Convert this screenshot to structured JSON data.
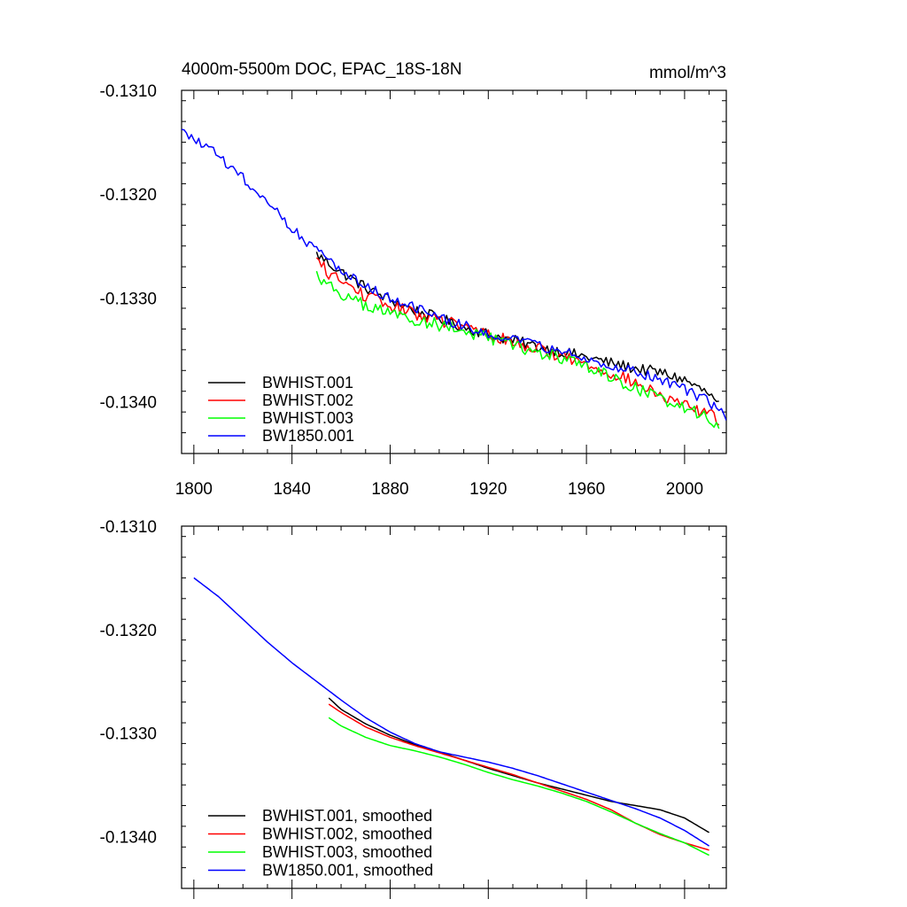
{
  "chart_data": [
    {
      "type": "line",
      "title": "4000m-5500m DOC, EPAC_18S-18N",
      "units": "mmol/m^3",
      "xlim": [
        1795,
        2017
      ],
      "ylim": [
        -0.1345,
        -0.131
      ],
      "xticks": [
        1800,
        1840,
        1880,
        1920,
        1960,
        2000
      ],
      "xtick_labels": [
        "1800",
        "1840",
        "1880",
        "1920",
        "1960",
        "2000"
      ],
      "yticks": [
        -0.131,
        -0.132,
        -0.133,
        -0.134
      ],
      "ytick_labels": [
        "-0.1310",
        "-0.1320",
        "-0.1330",
        "-0.1340"
      ],
      "series": [
        {
          "name": "BWHIST.001",
          "color": "#000000",
          "noise": 5.5e-05,
          "x": [
            1850,
            1860,
            1870,
            1880,
            1890,
            1900,
            1910,
            1920,
            1930,
            1940,
            1950,
            1960,
            1970,
            1980,
            1990,
            2000,
            2005,
            2010,
            2014
          ],
          "y": [
            -0.13258,
            -0.13275,
            -0.1329,
            -0.13302,
            -0.13312,
            -0.1332,
            -0.13328,
            -0.13335,
            -0.13341,
            -0.13347,
            -0.13352,
            -0.13357,
            -0.13363,
            -0.13368,
            -0.13372,
            -0.13379,
            -0.13386,
            -0.13393,
            -0.13404
          ]
        },
        {
          "name": "BWHIST.002",
          "color": "#ff0000",
          "noise": 6e-05,
          "x": [
            1850,
            1855,
            1860,
            1870,
            1880,
            1890,
            1900,
            1910,
            1920,
            1930,
            1940,
            1950,
            1960,
            1970,
            1980,
            1990,
            2000,
            2010,
            2014
          ],
          "y": [
            -0.13264,
            -0.13276,
            -0.13284,
            -0.13298,
            -0.13308,
            -0.13315,
            -0.13321,
            -0.13328,
            -0.13335,
            -0.13343,
            -0.13349,
            -0.13356,
            -0.13364,
            -0.13372,
            -0.13382,
            -0.13395,
            -0.13404,
            -0.13412,
            -0.13418
          ]
        },
        {
          "name": "BWHIST.003",
          "color": "#00ff00",
          "noise": 6e-05,
          "x": [
            1850,
            1855,
            1860,
            1870,
            1880,
            1890,
            1900,
            1910,
            1920,
            1930,
            1940,
            1950,
            1960,
            1970,
            1980,
            1990,
            2000,
            2010,
            2014
          ],
          "y": [
            -0.13277,
            -0.13288,
            -0.13296,
            -0.13308,
            -0.13315,
            -0.13321,
            -0.13326,
            -0.13332,
            -0.13339,
            -0.13346,
            -0.13353,
            -0.13358,
            -0.13366,
            -0.13376,
            -0.13387,
            -0.13397,
            -0.13405,
            -0.13416,
            -0.13424
          ]
        },
        {
          "name": "BW1850.001",
          "color": "#0000ff",
          "noise": 5e-05,
          "x": [
            1795,
            1800,
            1810,
            1820,
            1830,
            1840,
            1850,
            1860,
            1870,
            1880,
            1890,
            1900,
            1910,
            1920,
            1930,
            1940,
            1950,
            1960,
            1970,
            1980,
            1990,
            2000,
            2010,
            2017
          ],
          "y": [
            -0.1314,
            -0.13147,
            -0.13163,
            -0.13185,
            -0.13207,
            -0.13232,
            -0.13255,
            -0.13272,
            -0.13288,
            -0.133,
            -0.1331,
            -0.13319,
            -0.13327,
            -0.13334,
            -0.13341,
            -0.13346,
            -0.13352,
            -0.13358,
            -0.13365,
            -0.13372,
            -0.13378,
            -0.13388,
            -0.134,
            -0.13415
          ]
        }
      ]
    },
    {
      "type": "line",
      "title": "",
      "units": "",
      "xlim": [
        1795,
        2017
      ],
      "ylim": [
        -0.1345,
        -0.131
      ],
      "xticks": [
        1800,
        1840,
        1880,
        1920,
        1960,
        2000
      ],
      "xtick_labels": [
        "",
        "",
        "",
        "",
        "",
        ""
      ],
      "yticks": [
        -0.131,
        -0.132,
        -0.133,
        -0.134
      ],
      "ytick_labels": [
        "-0.1310",
        "-0.1320",
        "-0.1330",
        "-0.1340"
      ],
      "series": [
        {
          "name": "BWHIST.001, smoothed",
          "color": "#000000",
          "noise": 0,
          "x": [
            1855,
            1860,
            1870,
            1880,
            1890,
            1900,
            1910,
            1920,
            1930,
            1940,
            1950,
            1960,
            1970,
            1980,
            1990,
            2000,
            2010
          ],
          "y": [
            -0.13266,
            -0.13277,
            -0.13291,
            -0.13302,
            -0.13311,
            -0.13318,
            -0.13326,
            -0.13334,
            -0.13341,
            -0.13348,
            -0.13354,
            -0.1336,
            -0.13366,
            -0.1337,
            -0.13374,
            -0.13382,
            -0.13396
          ]
        },
        {
          "name": "BWHIST.002, smoothed",
          "color": "#ff0000",
          "noise": 0,
          "x": [
            1855,
            1860,
            1870,
            1880,
            1890,
            1900,
            1910,
            1920,
            1930,
            1940,
            1950,
            1960,
            1970,
            1980,
            1990,
            2000,
            2010
          ],
          "y": [
            -0.13272,
            -0.1328,
            -0.13294,
            -0.13304,
            -0.13312,
            -0.13319,
            -0.13326,
            -0.13333,
            -0.1334,
            -0.13348,
            -0.13356,
            -0.13364,
            -0.13374,
            -0.13387,
            -0.13398,
            -0.13406,
            -0.13413
          ]
        },
        {
          "name": "BWHIST.003, smoothed",
          "color": "#00ff00",
          "noise": 0,
          "x": [
            1855,
            1860,
            1870,
            1880,
            1890,
            1900,
            1910,
            1920,
            1930,
            1940,
            1950,
            1960,
            1970,
            1980,
            1990,
            2000,
            2010
          ],
          "y": [
            -0.13285,
            -0.13293,
            -0.13304,
            -0.13312,
            -0.13317,
            -0.13323,
            -0.1333,
            -0.13338,
            -0.13345,
            -0.13351,
            -0.13358,
            -0.13366,
            -0.13376,
            -0.13387,
            -0.13397,
            -0.13406,
            -0.13418
          ]
        },
        {
          "name": "BW1850.001, smoothed",
          "color": "#0000ff",
          "noise": 0,
          "x": [
            1800,
            1810,
            1820,
            1830,
            1840,
            1850,
            1860,
            1870,
            1880,
            1890,
            1900,
            1910,
            1920,
            1930,
            1940,
            1950,
            1960,
            1970,
            1980,
            1990,
            2000,
            2010
          ],
          "y": [
            -0.1315,
            -0.13168,
            -0.1319,
            -0.13212,
            -0.13232,
            -0.1325,
            -0.13268,
            -0.13285,
            -0.13299,
            -0.1331,
            -0.13318,
            -0.13323,
            -0.13328,
            -0.13334,
            -0.13341,
            -0.13349,
            -0.13357,
            -0.13365,
            -0.13373,
            -0.13382,
            -0.13394,
            -0.13409
          ]
        }
      ]
    }
  ]
}
